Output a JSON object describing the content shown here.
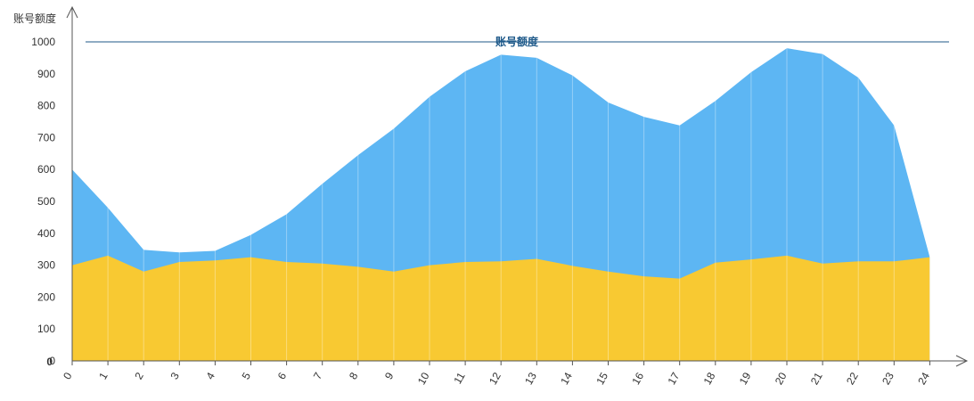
{
  "chart_data": {
    "type": "area",
    "ylabel": "账号额度",
    "x": [
      "0",
      "1",
      "2",
      "3",
      "4",
      "5",
      "6",
      "7",
      "8",
      "9",
      "10",
      "11",
      "12",
      "13",
      "14",
      "15",
      "16",
      "17",
      "18",
      "19",
      "20",
      "21",
      "22",
      "23",
      "24"
    ],
    "ylim": [
      0,
      1000
    ],
    "yticks": [
      0,
      100,
      200,
      300,
      400,
      500,
      600,
      700,
      800,
      900,
      1000
    ],
    "y_zero_duplicate_label": "0",
    "grid": "vertical lines at each x category",
    "legend": "none",
    "series": [
      {
        "color": "#5db6f3",
        "values": [
          600,
          480,
          348,
          340,
          345,
          395,
          460,
          555,
          645,
          728,
          828,
          908,
          960,
          950,
          895,
          810,
          765,
          738,
          815,
          905,
          980,
          962,
          888,
          738,
          325
        ]
      },
      {
        "color": "#f8c932",
        "values": [
          300,
          330,
          280,
          310,
          315,
          325,
          310,
          305,
          295,
          280,
          300,
          310,
          312,
          320,
          298,
          280,
          265,
          258,
          308,
          318,
          330,
          305,
          312,
          312,
          325
        ]
      }
    ],
    "reference_line": {
      "value": 1000,
      "label": "账号额度",
      "color": "#1f5a8a"
    }
  }
}
